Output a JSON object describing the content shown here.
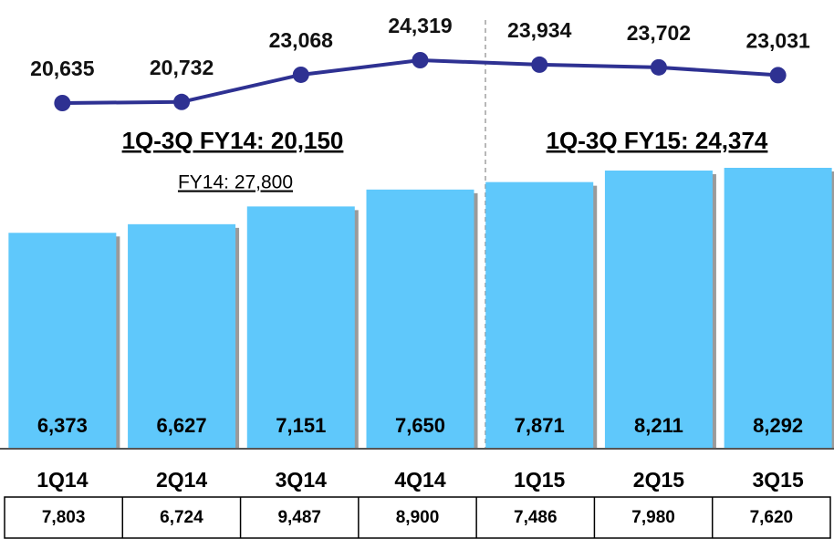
{
  "chart_data": {
    "type": "bar",
    "categories": [
      "1Q14",
      "2Q14",
      "3Q14",
      "4Q14",
      "1Q15",
      "2Q15",
      "3Q15"
    ],
    "series": [
      {
        "type": "bar",
        "color": "#5fc8fb",
        "values": [
          6373,
          6627,
          7151,
          7650,
          7871,
          8211,
          8292
        ],
        "value_labels": [
          "6,373",
          "6,627",
          "7,151",
          "7,650",
          "7,871",
          "8,211",
          "8,292"
        ]
      },
      {
        "type": "line",
        "color": "#2e3192",
        "values": [
          20635,
          20732,
          23068,
          24319,
          23934,
          23702,
          23031
        ],
        "value_labels": [
          "20,635",
          "20,732",
          "23,068",
          "24,319",
          "23,934",
          "23,702",
          "23,031"
        ]
      }
    ],
    "annotations": [
      "1Q-3Q FY14: 20,150",
      "1Q-3Q FY15: 24,374",
      "FY14: 27,800"
    ],
    "table_row": [
      "7,803",
      "6,724",
      "9,487",
      "8,900",
      "7,486",
      "7,980",
      "7,620"
    ]
  }
}
